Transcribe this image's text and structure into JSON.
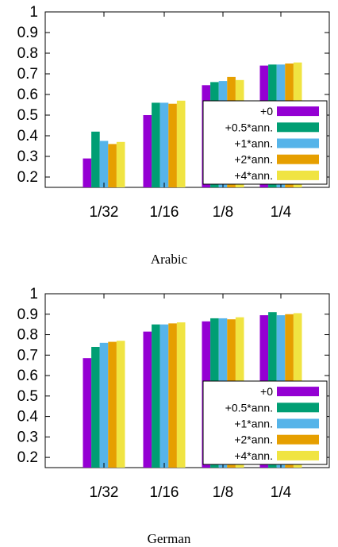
{
  "chart_data": [
    {
      "type": "bar",
      "caption": "Arabic",
      "categories": [
        "1/32",
        "1/16",
        "1/8",
        "1/4"
      ],
      "ylim": [
        0.15,
        1.0
      ],
      "yticks": [
        "0.2",
        "0.3",
        "0.4",
        "0.5",
        "0.6",
        "0.7",
        "0.8",
        "0.9",
        "1"
      ],
      "legend_position": "bottom-right",
      "series": [
        {
          "name": "+0",
          "color": "#9400d3",
          "values": [
            0.29,
            0.5,
            0.645,
            0.74
          ]
        },
        {
          "name": "+0.5*ann.",
          "color": "#009e73",
          "values": [
            0.42,
            0.56,
            0.66,
            0.745
          ]
        },
        {
          "name": "+1*ann.",
          "color": "#56b4e9",
          "values": [
            0.375,
            0.56,
            0.665,
            0.745
          ]
        },
        {
          "name": "+2*ann.",
          "color": "#e69f00",
          "values": [
            0.36,
            0.555,
            0.685,
            0.75
          ]
        },
        {
          "name": "+4*ann.",
          "color": "#f0e442",
          "values": [
            0.37,
            0.57,
            0.67,
            0.755
          ]
        }
      ]
    },
    {
      "type": "bar",
      "caption": "German",
      "categories": [
        "1/32",
        "1/16",
        "1/8",
        "1/4"
      ],
      "ylim": [
        0.15,
        1.0
      ],
      "yticks": [
        "0.2",
        "0.3",
        "0.4",
        "0.5",
        "0.6",
        "0.7",
        "0.8",
        "0.9",
        "1"
      ],
      "legend_position": "bottom-right",
      "series": [
        {
          "name": "+0",
          "color": "#9400d3",
          "values": [
            0.685,
            0.815,
            0.865,
            0.895
          ]
        },
        {
          "name": "+0.5*ann.",
          "color": "#009e73",
          "values": [
            0.74,
            0.85,
            0.88,
            0.91
          ]
        },
        {
          "name": "+1*ann.",
          "color": "#56b4e9",
          "values": [
            0.76,
            0.85,
            0.88,
            0.895
          ]
        },
        {
          "name": "+2*ann.",
          "color": "#e69f00",
          "values": [
            0.765,
            0.855,
            0.875,
            0.9
          ]
        },
        {
          "name": "+4*ann.",
          "color": "#f0e442",
          "values": [
            0.77,
            0.86,
            0.885,
            0.905
          ]
        }
      ]
    }
  ]
}
